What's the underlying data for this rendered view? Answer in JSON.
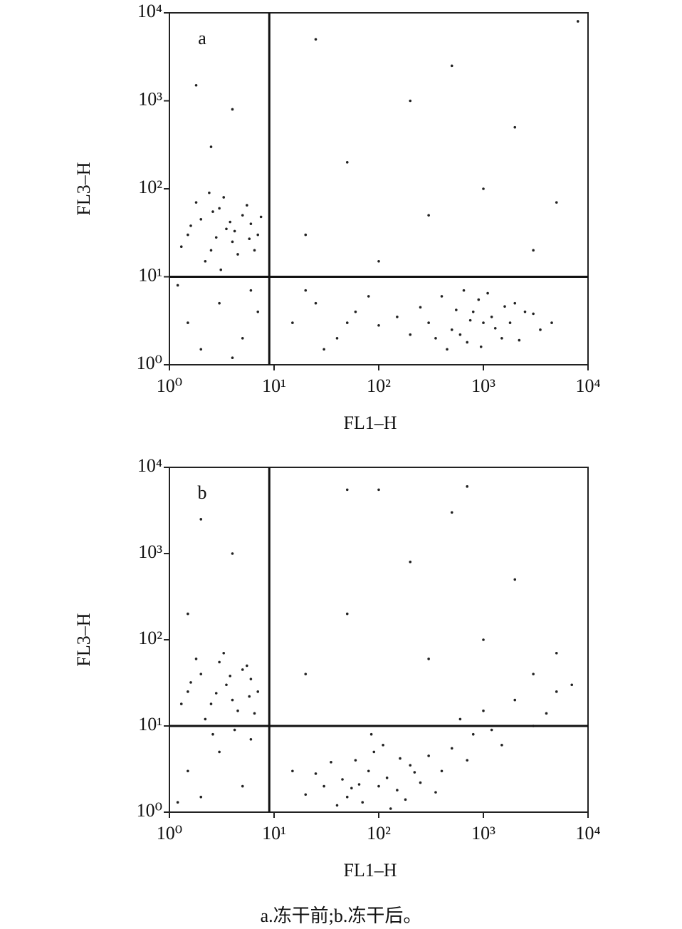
{
  "caption": "a.冻干前;b.冻干后。",
  "chart_data": [
    {
      "type": "scatter",
      "label": "a",
      "xlabel": "FL1–H",
      "ylabel": "FL3–H",
      "color": "#222",
      "log_x": true,
      "log_y": true,
      "xlim": [
        1,
        10000
      ],
      "ylim": [
        1,
        10000
      ],
      "xticks": [
        {
          "value": 1,
          "label": "10⁰"
        },
        {
          "value": 10,
          "label": "10¹"
        },
        {
          "value": 100,
          "label": "10²"
        },
        {
          "value": 1000,
          "label": "10³"
        },
        {
          "value": 10000,
          "label": "10⁴"
        }
      ],
      "yticks": [
        {
          "value": 1,
          "label": "10⁰"
        },
        {
          "value": 10,
          "label": "10¹"
        },
        {
          "value": 100,
          "label": "10²"
        },
        {
          "value": 1000,
          "label": "10³"
        },
        {
          "value": 10000,
          "label": "10⁴"
        }
      ],
      "gates": {
        "x": 9,
        "y": 10
      },
      "x": [
        1.5,
        2,
        2.5,
        3,
        3.5,
        4,
        5,
        6,
        1.8,
        2.2,
        2.8,
        3.3,
        4.5,
        5.5,
        7,
        1.3,
        2.6,
        3.8,
        6.5,
        1.6,
        4.2,
        5.8,
        2.4,
        3.1,
        7.5,
        300,
        500,
        800,
        1000,
        1500,
        2000,
        400,
        700,
        1200,
        600,
        900,
        250,
        350,
        1800,
        2500,
        3500,
        150,
        100,
        450,
        1100,
        750,
        550,
        1300,
        2200,
        3000,
        200,
        650,
        950,
        1600,
        4500,
        1.5,
        3,
        5,
        2,
        6,
        1.2,
        4,
        7,
        15,
        25,
        40,
        60,
        30,
        80,
        20,
        50,
        20,
        50,
        100,
        300,
        1000,
        3000,
        200,
        2000,
        500,
        5000,
        25,
        8000,
        1.8,
        2.5,
        4
      ],
      "values": [
        30,
        45,
        20,
        60,
        35,
        25,
        50,
        40,
        70,
        15,
        28,
        80,
        18,
        65,
        30,
        22,
        55,
        42,
        20,
        38,
        33,
        27,
        90,
        12,
        48,
        3,
        2.5,
        4,
        3,
        2,
        5,
        6,
        1.8,
        3.5,
        2.2,
        5.5,
        4.5,
        2,
        3,
        4,
        2.5,
        3.5,
        2.8,
        1.5,
        6.5,
        3.2,
        4.2,
        2.6,
        1.9,
        3.8,
        2.2,
        7,
        1.6,
        4.6,
        3,
        3,
        5,
        2,
        1.5,
        7,
        8,
        1.2,
        4,
        3,
        5,
        2,
        4,
        1.5,
        6,
        7,
        3,
        30,
        200,
        15,
        50,
        100,
        20,
        1000,
        500,
        2500,
        70,
        5000,
        8000,
        1500,
        300,
        800
      ]
    },
    {
      "type": "scatter",
      "label": "b",
      "xlabel": "FL1–H",
      "ylabel": "FL3–H",
      "color": "#222",
      "log_x": true,
      "log_y": true,
      "xlim": [
        1,
        10000
      ],
      "ylim": [
        1,
        10000
      ],
      "xticks": [
        {
          "value": 1,
          "label": "10⁰"
        },
        {
          "value": 10,
          "label": "10¹"
        },
        {
          "value": 100,
          "label": "10²"
        },
        {
          "value": 1000,
          "label": "10³"
        },
        {
          "value": 10000,
          "label": "10⁴"
        }
      ],
      "yticks": [
        {
          "value": 1,
          "label": "10⁰"
        },
        {
          "value": 10,
          "label": "10¹"
        },
        {
          "value": 100,
          "label": "10²"
        },
        {
          "value": 1000,
          "label": "10³"
        },
        {
          "value": 10000,
          "label": "10⁴"
        }
      ],
      "gates": {
        "x": 9,
        "y": 10
      },
      "x": [
        1.5,
        2,
        2.5,
        3,
        3.5,
        4,
        5,
        6,
        1.8,
        2.2,
        2.8,
        3.3,
        4.5,
        5.5,
        7,
        1.3,
        2.6,
        3.8,
        6.5,
        1.6,
        4.2,
        5.8,
        30,
        50,
        80,
        100,
        150,
        200,
        60,
        40,
        120,
        70,
        90,
        25,
        35,
        180,
        250,
        300,
        20,
        45,
        110,
        400,
        500,
        130,
        65,
        220,
        700,
        15,
        350,
        85,
        160,
        55,
        600,
        1000,
        2000,
        3000,
        5000,
        800,
        1500,
        4000,
        7000,
        1200,
        1.5,
        3,
        5,
        2,
        6,
        1.2,
        20,
        50,
        100,
        300,
        1000,
        3000,
        200,
        2000,
        500,
        5000,
        50,
        700,
        2,
        1.5,
        4
      ],
      "values": [
        25,
        40,
        18,
        55,
        30,
        20,
        45,
        35,
        60,
        12,
        24,
        70,
        15,
        50,
        25,
        18,
        8,
        38,
        14,
        32,
        9,
        22,
        2,
        1.5,
        3,
        2,
        1.8,
        3.5,
        4,
        1.2,
        2.5,
        1.3,
        5,
        2.8,
        3.8,
        1.4,
        2.2,
        4.5,
        1.6,
        2.4,
        6,
        3,
        5.5,
        1.1,
        2.1,
        2.9,
        4,
        3,
        1.7,
        8,
        4.2,
        1.9,
        12,
        15,
        20,
        10,
        25,
        8,
        6,
        14,
        30,
        9,
        3,
        5,
        2,
        1.5,
        7,
        1.3,
        40,
        200,
        5500,
        60,
        100,
        40,
        800,
        500,
        3000,
        70,
        5500,
        6000,
        2500,
        200,
        1000
      ]
    }
  ]
}
